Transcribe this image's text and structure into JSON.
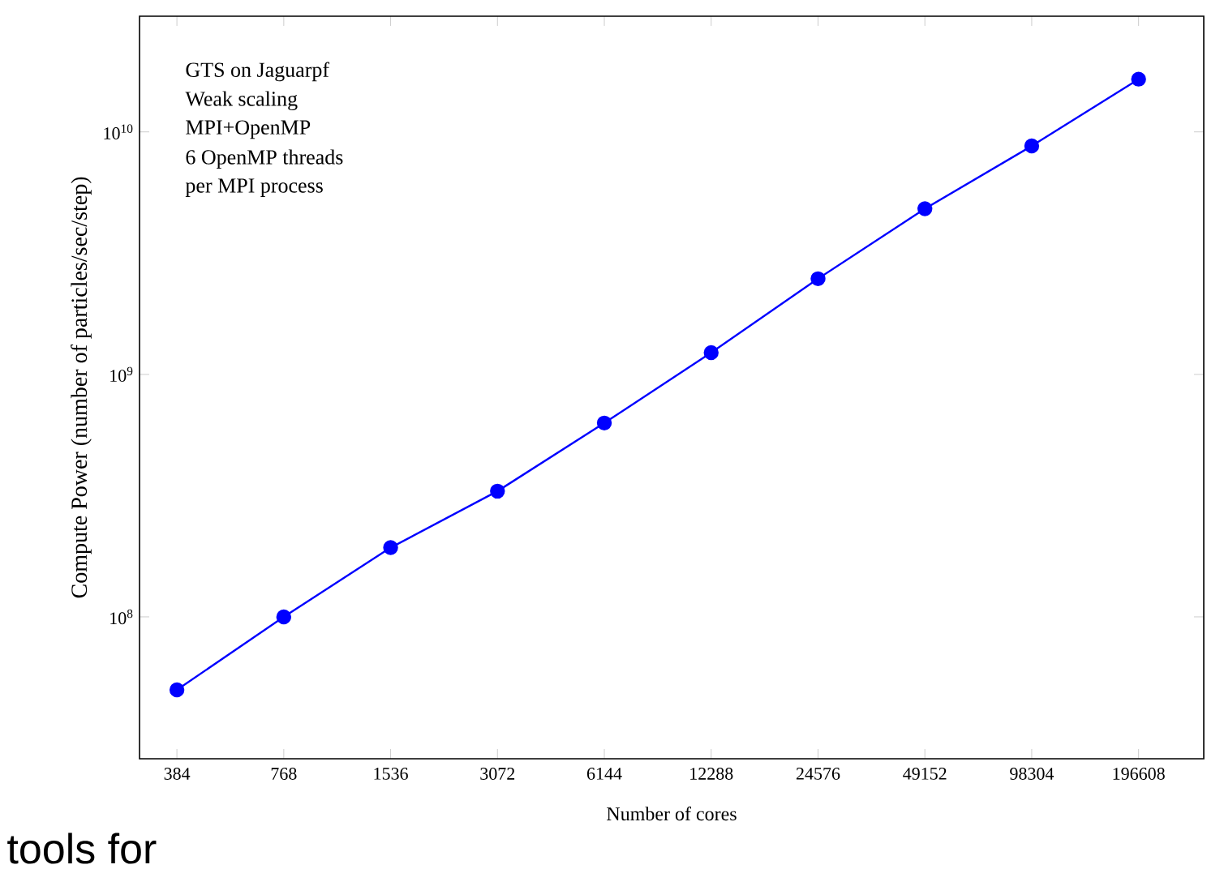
{
  "chart_data": {
    "type": "line",
    "xlabel": "Number of cores",
    "ylabel": "Compute Power (number of particles/sec/step)",
    "categories": [
      "384",
      "768",
      "1536",
      "3072",
      "6144",
      "12288",
      "24576",
      "49152",
      "98304",
      "196608"
    ],
    "series": [
      {
        "color": "#0000ff",
        "values": [
          50000000.0,
          100000000.0,
          193000000.0,
          330000000.0,
          630000000.0,
          1230000000.0,
          2480000000.0,
          4820000000.0,
          8750000000.0,
          16500000000.0
        ]
      }
    ],
    "log": "y",
    "ylim": [
      26000000.0,
      30000000000.0
    ],
    "yticks": [
      {
        "value": 100000000.0,
        "label": "10$^{8}$"
      },
      {
        "value": 1000000000.0,
        "label": "10$^{9}$"
      },
      {
        "value": 10000000000.0,
        "label": "10$^{10}$"
      }
    ],
    "marker": "circle",
    "line_style": "solid",
    "annotations": [
      "GTS on Jaguarpf",
      "Weak scaling",
      "MPI+OpenMP",
      "6 OpenMP threads",
      "per MPI process",
      "tools for"
    ]
  }
}
